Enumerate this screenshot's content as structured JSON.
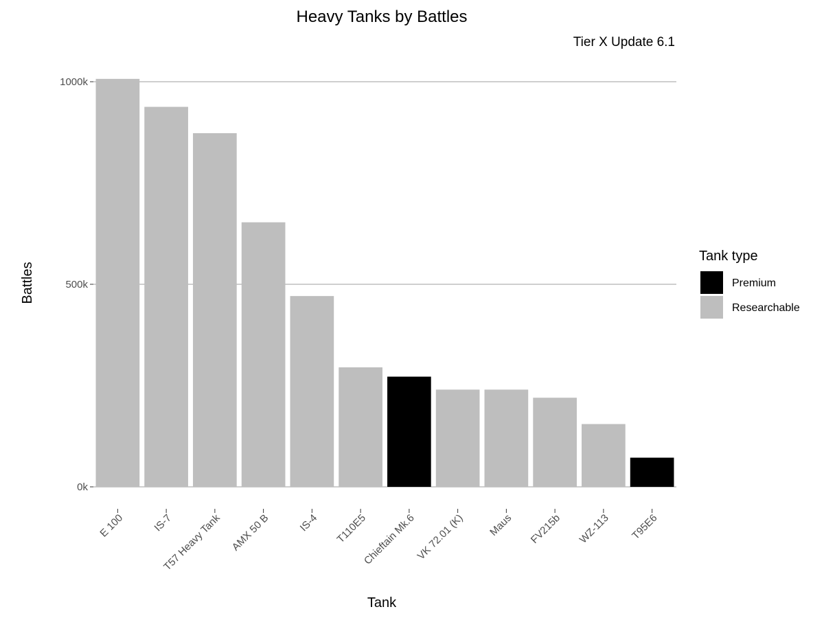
{
  "chart_data": {
    "type": "bar",
    "title": "Heavy Tanks by Battles",
    "subtitle": "Tier X Update 6.1",
    "xlabel": "Tank",
    "ylabel": "Battles",
    "ylim": [
      0,
      1000000
    ],
    "yticks": [
      0,
      500000,
      1000000
    ],
    "ytick_labels": [
      "0k",
      "500k",
      "1000k"
    ],
    "grid": "horizontal major",
    "legend": {
      "title": "Tank type",
      "position": "right",
      "entries": [
        {
          "label": "Premium",
          "color": "#000000"
        },
        {
          "label": "Researchable",
          "color": "#bebebe"
        }
      ]
    },
    "categories": [
      "E 100",
      "IS-7",
      "T57 Heavy Tank",
      "AMX 50 B",
      "IS-4",
      "T110E5",
      "Chieftain Mk.6",
      "VK 72.01 (K)",
      "Maus",
      "FV215b",
      "WZ-113",
      "T95E6"
    ],
    "values": [
      1007000,
      938000,
      873000,
      653000,
      471000,
      295000,
      272000,
      240000,
      240000,
      220000,
      155000,
      72000
    ],
    "types": [
      "Researchable",
      "Researchable",
      "Researchable",
      "Researchable",
      "Researchable",
      "Researchable",
      "Premium",
      "Researchable",
      "Researchable",
      "Researchable",
      "Researchable",
      "Premium"
    ]
  }
}
